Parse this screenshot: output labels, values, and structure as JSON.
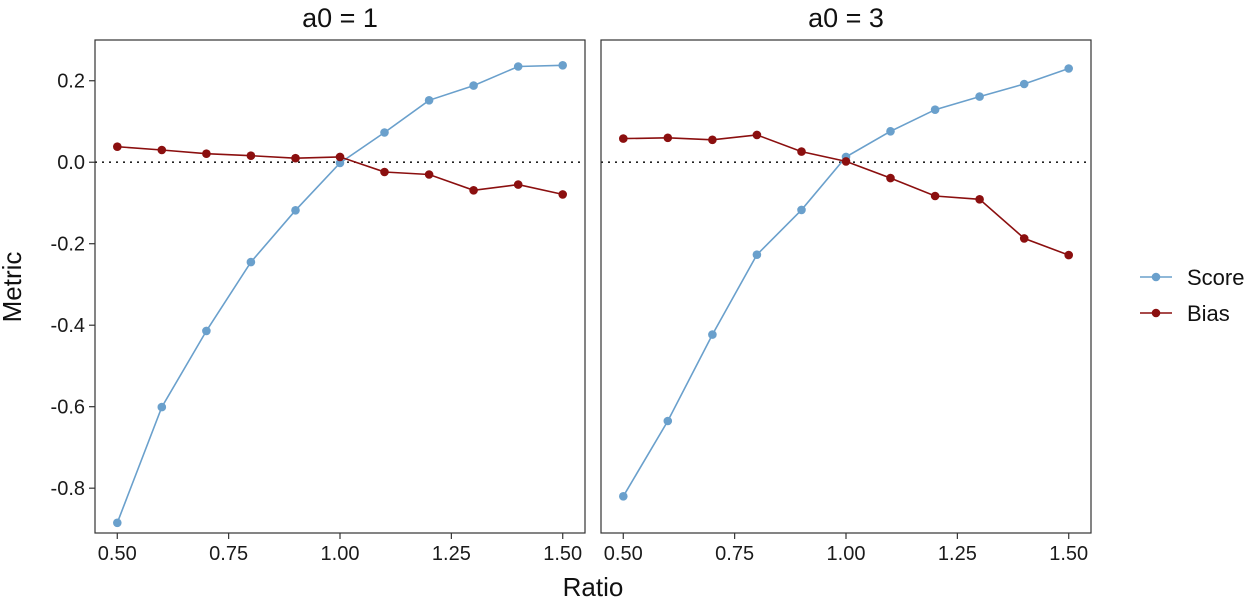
{
  "chart_data": {
    "type": "line",
    "facet_variable": "a0",
    "x_label": "Ratio",
    "y_label": "Metric",
    "x_ticks": [
      "0.50",
      "0.75",
      "1.00",
      "1.25",
      "1.50"
    ],
    "y_ticks": [
      "0.2",
      "0.0",
      "-0.2",
      "-0.4",
      "-0.6",
      "-0.8"
    ],
    "xlim": [
      0.45,
      1.55
    ],
    "ylim": [
      -0.91,
      0.3
    ],
    "reference_line": {
      "y": 0,
      "style": "dotted"
    },
    "legend": {
      "position": "right",
      "entries": [
        {
          "name": "Score",
          "color": "#6aa0cc"
        },
        {
          "name": "Bias",
          "color": "#8b0f0f"
        }
      ]
    },
    "panels": [
      {
        "title": "a0 = 1",
        "x": [
          0.5,
          0.6,
          0.7,
          0.8,
          0.9,
          1.0,
          1.1,
          1.2,
          1.3,
          1.4,
          1.5
        ],
        "series": [
          {
            "name": "Score",
            "values": [
              -0.885,
              -0.601,
              -0.414,
              -0.245,
              -0.118,
              -0.002,
              0.073,
              0.152,
              0.188,
              0.235,
              0.238
            ]
          },
          {
            "name": "Bias",
            "values": [
              0.038,
              0.03,
              0.021,
              0.016,
              0.01,
              0.013,
              -0.024,
              -0.03,
              -0.069,
              -0.055,
              -0.079
            ]
          }
        ]
      },
      {
        "title": "a0 = 3",
        "x": [
          0.5,
          0.6,
          0.7,
          0.8,
          0.9,
          1.0,
          1.1,
          1.2,
          1.3,
          1.4,
          1.5
        ],
        "series": [
          {
            "name": "Score",
            "values": [
              -0.82,
              -0.635,
              -0.423,
              -0.227,
              -0.117,
              0.013,
              0.076,
              0.129,
              0.161,
              0.192,
              0.23
            ]
          },
          {
            "name": "Bias",
            "values": [
              0.058,
              0.06,
              0.055,
              0.067,
              0.026,
              0.002,
              -0.039,
              -0.083,
              -0.091,
              -0.187,
              -0.228
            ]
          }
        ]
      }
    ]
  }
}
